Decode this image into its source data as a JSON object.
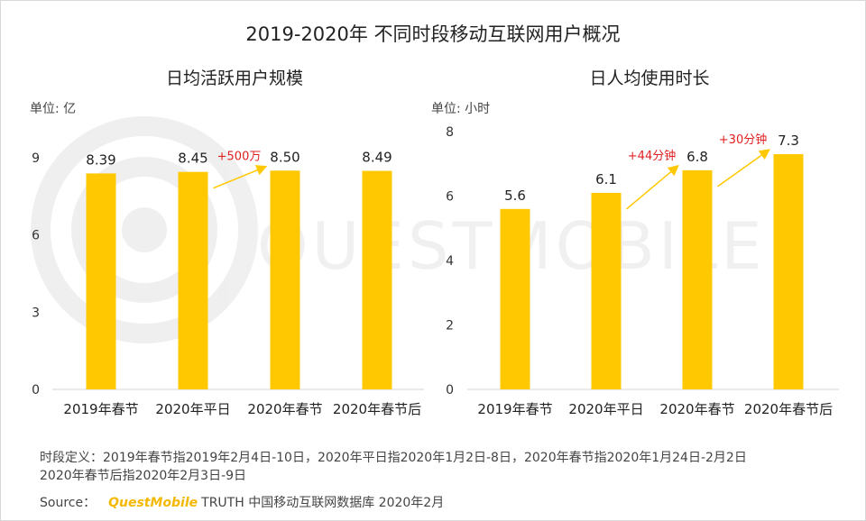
{
  "page": {
    "title": "2019-2020年 不同时段移动互联网用户概况",
    "watermark": "QUESTMOBILE",
    "notes": [
      "时段定义：2019年春节指2019年2月4日-10日，2020年平日指2020年1月2日-8日，2020年春节指2020年1月24日-2月2日",
      "2020年春节后指2020年2月3日-9日"
    ],
    "source_label": "Source：",
    "source_brand": "QuestMobile",
    "source_text": "TRUTH 中国移动互联网数据库 2020年2月",
    "colors": {
      "bar": "#ffc800",
      "annotation_text": "#e02020",
      "arrow": "#ffc800"
    }
  },
  "chart_data": [
    {
      "type": "bar",
      "title": "日均活跃用户规模",
      "unit_label": "单位: 亿",
      "categories": [
        "2019年春节",
        "2020年平日",
        "2020年春节",
        "2020年春节后"
      ],
      "values": [
        8.39,
        8.45,
        8.5,
        8.49
      ],
      "value_labels": [
        "8.39",
        "8.45",
        "8.50",
        "8.49"
      ],
      "yticks": [
        "0",
        "3",
        "6",
        "9"
      ],
      "ylim": [
        0,
        9
      ],
      "annotations": [
        {
          "text": "+500万",
          "from_index": 1,
          "to_index": 2
        }
      ]
    },
    {
      "type": "bar",
      "title": "日人均使用时长",
      "unit_label": "单位: 小时",
      "categories": [
        "2019年春节",
        "2020年平日",
        "2020年春节",
        "2020年春节后"
      ],
      "values": [
        5.6,
        6.1,
        6.8,
        7.3
      ],
      "value_labels": [
        "5.6",
        "6.1",
        "6.8",
        "7.3"
      ],
      "yticks": [
        "0",
        "2",
        "4",
        "6",
        "8"
      ],
      "ylim": [
        0,
        8
      ],
      "annotations": [
        {
          "text": "+44分钟",
          "from_index": 1,
          "to_index": 2
        },
        {
          "text": "+30分钟",
          "from_index": 2,
          "to_index": 3
        }
      ]
    }
  ]
}
